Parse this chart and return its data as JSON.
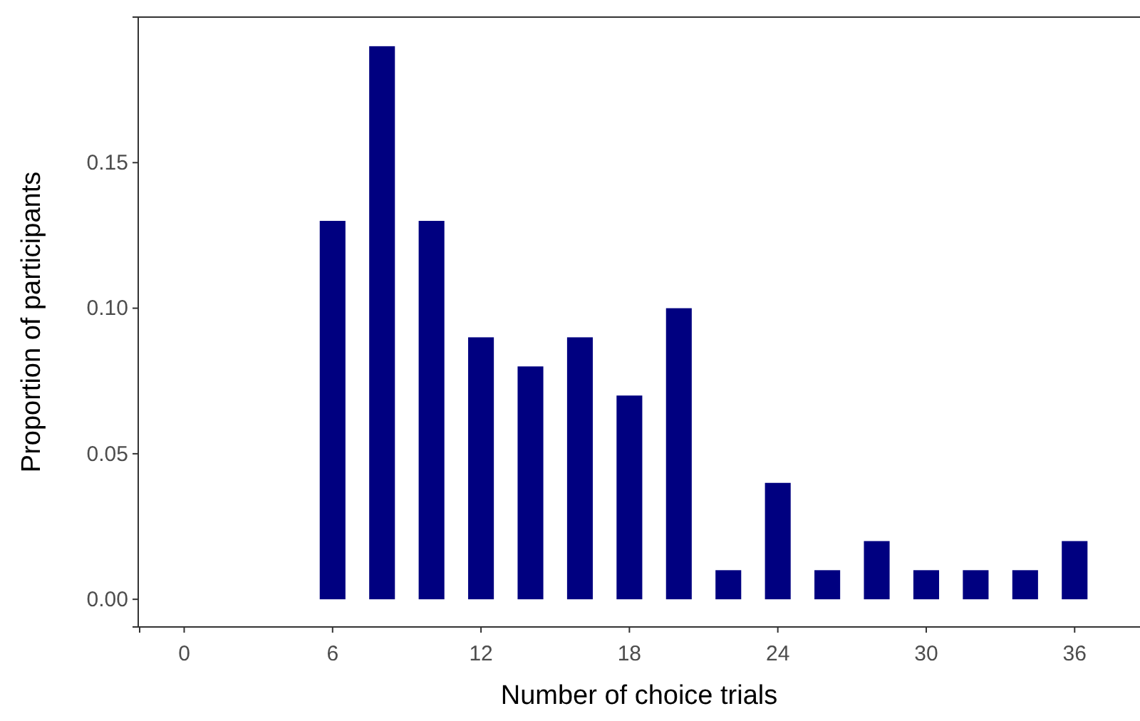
{
  "chart_data": {
    "type": "bar",
    "xlabel": "Number of choice trials",
    "ylabel": "Proportion of participants",
    "x": [
      6,
      8,
      10,
      12,
      14,
      16,
      18,
      20,
      22,
      24,
      26,
      28,
      30,
      32,
      34,
      36
    ],
    "values": [
      0.13,
      0.19,
      0.13,
      0.09,
      0.08,
      0.09,
      0.07,
      0.1,
      0.01,
      0.04,
      0.01,
      0.02,
      0.01,
      0.01,
      0.01,
      0.02
    ],
    "color": "#000080",
    "xlim": [
      -1.8,
      38.7
    ],
    "xticks": [
      0,
      6,
      12,
      18,
      24,
      30,
      36
    ],
    "ylim": [
      -0.0095,
      0.2
    ],
    "yticks": [
      {
        "value": 0,
        "label": "0.00"
      },
      {
        "value": 0.05,
        "label": "0.05"
      },
      {
        "value": 0.1,
        "label": "0.10"
      },
      {
        "value": 0.15,
        "label": "0.15"
      }
    ],
    "grid": false
  }
}
